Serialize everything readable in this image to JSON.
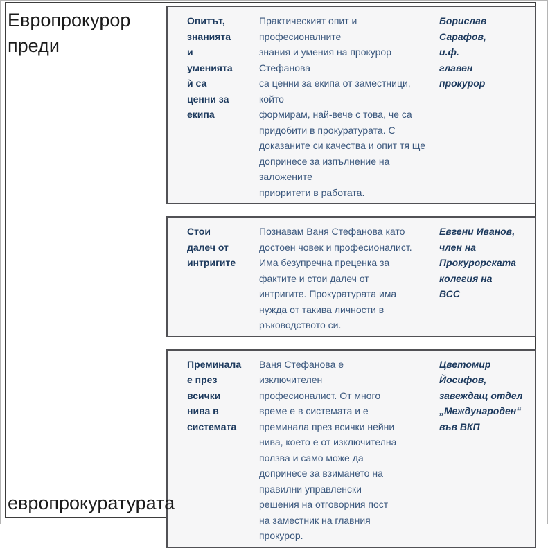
{
  "page": {
    "title_top": "Европрокурор\nпреди",
    "title_bottom": "европрокуратурата"
  },
  "quotes": [
    {
      "heading": "Опитът,\nзнанията\nи\nуменията\nѝ са\nценни за\nекипа",
      "body": "Практическият опит и професионалните\nзнания и умения на прокурор Стефанова\nса ценни за екипа от заместници, който\nформирам, най-вече с това, че са\nпридобити в прокуратурата. С\nдоказаните си качества и опит тя ще\nдопринесе за изпълнение на заложените\nприоритети в работата.",
      "attribution": "Борислав\nСарафов,\nи.ф.\nглавен\nпрокурор"
    },
    {
      "heading": "Стои\nдалеч от\nинтригите",
      "body": "Познавам Ваня Стефанова като\nдостоен човек и професионалист.\nИма безупречна преценка за\nфактите и стои далеч от\nинтригите. Прокуратурата има\nнужда от такива личности в\nръководството си.",
      "attribution": "Евгени Иванов,\nчлен на\nПрокурорската\nколегия на\nВСС"
    },
    {
      "heading": "Преминала\nе през\nвсички\nнива в\nсистемата",
      "body": "Ваня Стефанова е\nизключителен\nпрофесионалист. От много\nвреме е в системата и е\nпреминала през всички нейни\nнива, което е от изключителна\nползва и само може да\nдопринесе за взимането на\nправилни управленски\nрешения на отговорния пост\nна заместник на главния\nпрокурор.",
      "attribution": "Цветомир\nЙосифов,\nзавеждащ отдел\n„Международен“\nвъв ВКП"
    }
  ]
}
